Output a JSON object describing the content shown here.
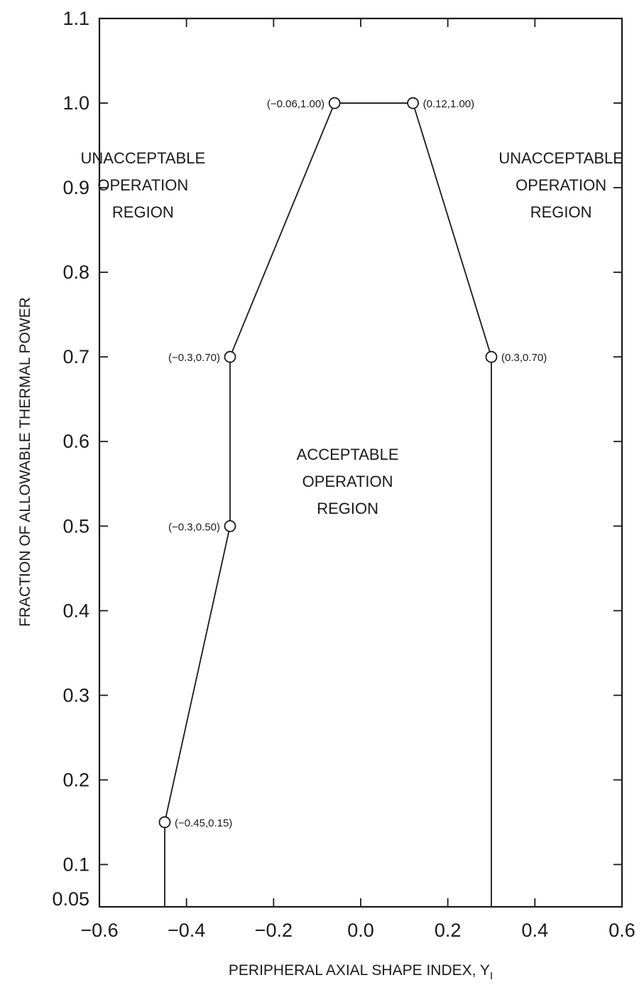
{
  "chart_data": {
    "type": "line",
    "title": "",
    "xlabel": "PERIPHERAL AXIAL SHAPE INDEX, Y",
    "xlabel_subscript": "I",
    "ylabel": "FRACTION OF ALLOWABLE THERMAL POWER",
    "xlim": [
      -0.6,
      0.6
    ],
    "ylim": [
      0.05,
      1.1
    ],
    "x_ticks": [
      -0.6,
      -0.4,
      -0.2,
      0.0,
      0.2,
      0.4,
      0.6
    ],
    "x_tick_labels": [
      "-0.6",
      "-0.4",
      "-0.2",
      "0.0",
      "0.2",
      "0.4",
      "0.6"
    ],
    "y_ticks": [
      0.05,
      0.1,
      0.2,
      0.3,
      0.4,
      0.5,
      0.6,
      0.7,
      0.8,
      0.9,
      1.0,
      1.1
    ],
    "y_tick_labels": [
      "0.05",
      "0.1",
      "0.2",
      "0.3",
      "0.4",
      "0.5",
      "0.6",
      "0.7",
      "0.8",
      "0.9",
      "1.0",
      "1.1"
    ],
    "grid": false,
    "series": [
      {
        "x": [
          -0.45,
          -0.45,
          -0.3,
          -0.3,
          -0.06,
          0.12,
          0.3,
          0.3
        ],
        "y": [
          0.05,
          0.15,
          0.5,
          0.7,
          1.0,
          1.0,
          0.7,
          0.05
        ]
      }
    ],
    "points": [
      {
        "x": -0.45,
        "y": 0.15,
        "label": "(-0.45,0.15)",
        "side": "right"
      },
      {
        "x": -0.3,
        "y": 0.5,
        "label": "(-0.3,0.50)",
        "side": "left"
      },
      {
        "x": -0.3,
        "y": 0.7,
        "label": "(-0.3,0.70)",
        "side": "left"
      },
      {
        "x": -0.06,
        "y": 1.0,
        "label": "(-0.06,1.00)",
        "side": "left"
      },
      {
        "x": 0.12,
        "y": 1.0,
        "label": "(0.12,1.00)",
        "side": "right"
      },
      {
        "x": 0.3,
        "y": 0.7,
        "label": "(0.3,0.70)",
        "side": "right"
      }
    ],
    "annotations": [
      {
        "lines": [
          "UNACCEPTABLE",
          "OPERATION",
          "REGION"
        ],
        "x": -0.5,
        "y": 0.9
      },
      {
        "lines": [
          "UNACCEPTABLE",
          "OPERATION",
          "REGION"
        ],
        "x": 0.46,
        "y": 0.9
      },
      {
        "lines": [
          "ACCEPTABLE",
          "OPERATION",
          "REGION"
        ],
        "x": -0.03,
        "y": 0.55
      }
    ]
  }
}
